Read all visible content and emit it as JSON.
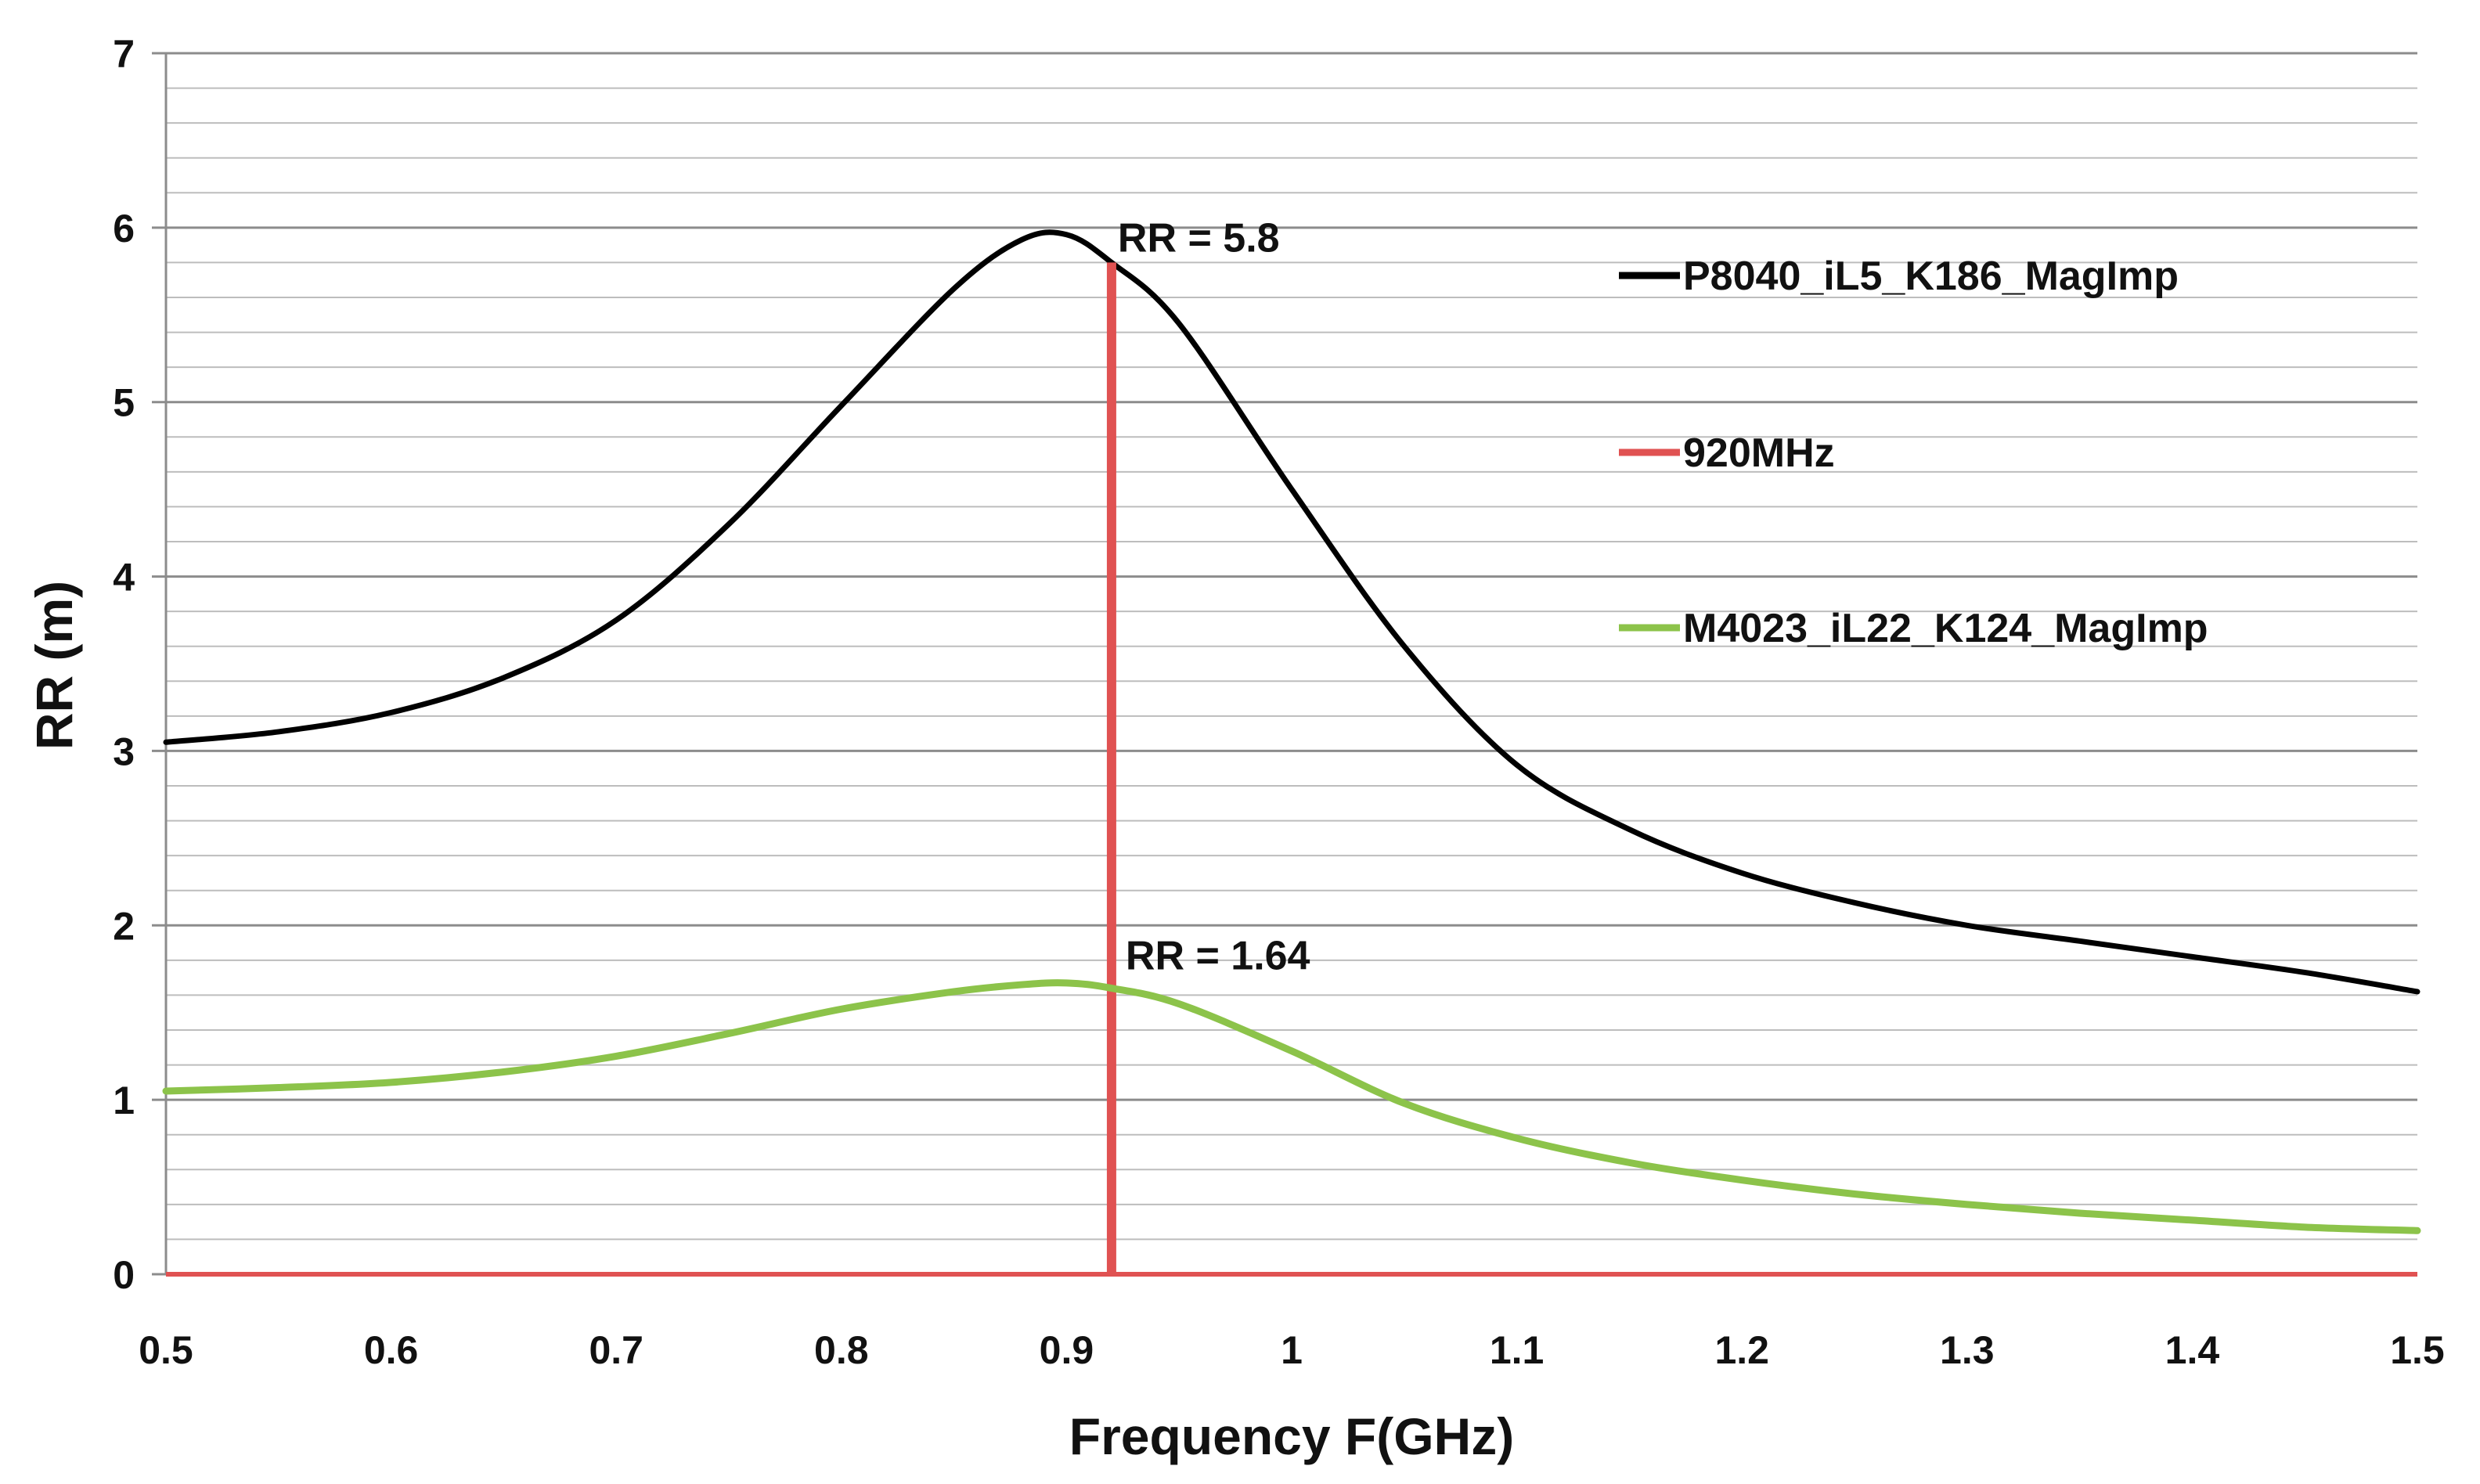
{
  "chart_data": {
    "type": "line",
    "title": "",
    "xlabel": "Frequency F(GHz)",
    "ylabel": "RR (m)",
    "xlim": [
      0.5,
      1.5
    ],
    "ylim": [
      0,
      7
    ],
    "x_ticks": [
      "0.5",
      "0.6",
      "0.7",
      "0.8",
      "0.9",
      "1",
      "1.1",
      "1.2",
      "1.3",
      "1.4",
      "1.5"
    ],
    "y_ticks": [
      "0",
      "1",
      "2",
      "3",
      "4",
      "5",
      "6",
      "7"
    ],
    "grid": "horizontal major + minor (0.2)",
    "legend_position": "right",
    "series": [
      {
        "name": "P8040_iL5_K186_MagImp",
        "color": "#000000",
        "x": [
          0.5,
          0.55,
          0.6,
          0.65,
          0.7,
          0.75,
          0.8,
          0.85,
          0.88,
          0.9,
          0.92,
          0.95,
          1.0,
          1.05,
          1.1,
          1.15,
          1.2,
          1.25,
          1.3,
          1.35,
          1.4,
          1.45,
          1.5
        ],
        "y": [
          3.05,
          3.11,
          3.22,
          3.42,
          3.75,
          4.3,
          4.98,
          5.65,
          5.93,
          5.96,
          5.8,
          5.45,
          4.5,
          3.6,
          2.92,
          2.55,
          2.3,
          2.13,
          2.0,
          1.91,
          1.82,
          1.73,
          1.62
        ]
      },
      {
        "name": "920MHz",
        "color": "#e05252",
        "x": [
          0.92,
          0.92
        ],
        "y": [
          0,
          5.8
        ]
      },
      {
        "name": "M4023_iL22_K124_MagImp",
        "color": "#8cc34a",
        "x": [
          0.5,
          0.55,
          0.6,
          0.65,
          0.7,
          0.75,
          0.8,
          0.85,
          0.88,
          0.9,
          0.92,
          0.95,
          1.0,
          1.05,
          1.1,
          1.15,
          1.2,
          1.25,
          1.3,
          1.35,
          1.4,
          1.45,
          1.5
        ],
        "y": [
          1.05,
          1.07,
          1.1,
          1.16,
          1.25,
          1.38,
          1.52,
          1.62,
          1.66,
          1.67,
          1.64,
          1.55,
          1.28,
          0.98,
          0.78,
          0.64,
          0.54,
          0.46,
          0.4,
          0.35,
          0.31,
          0.27,
          0.25
        ]
      }
    ],
    "baseline": {
      "y": 0,
      "color": "#e05252"
    },
    "annotations": [
      {
        "text": "RR = 5.8",
        "x": 0.92,
        "y": 5.8
      },
      {
        "text": "RR = 1.64",
        "x": 0.92,
        "y": 1.64
      }
    ]
  }
}
